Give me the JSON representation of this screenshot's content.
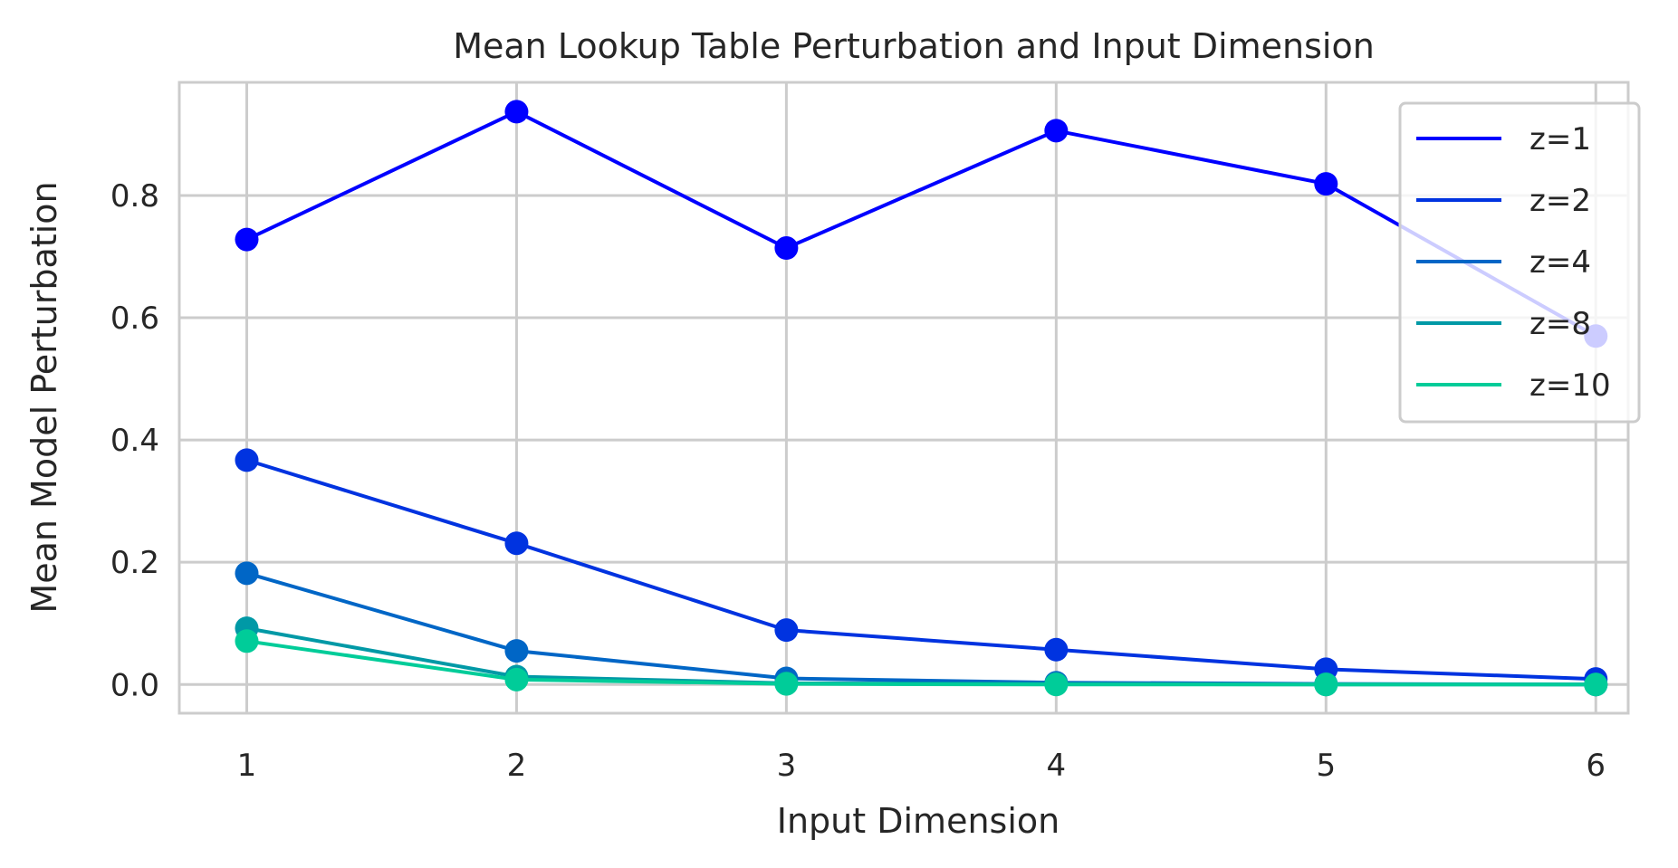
{
  "chart_data": {
    "type": "line",
    "title": "Mean Lookup Table Perturbation and Input Dimension",
    "xlabel": "Input Dimension",
    "ylabel": "Mean Model Perturbation",
    "x": [
      1,
      2,
      3,
      4,
      5,
      6
    ],
    "x_tick_labels": [
      "1",
      "2",
      "3",
      "4",
      "5",
      "6"
    ],
    "y_ticks": [
      0.0,
      0.2,
      0.4,
      0.6,
      0.8
    ],
    "y_tick_labels": [
      "0.0",
      "0.2",
      "0.4",
      "0.6",
      "0.8"
    ],
    "xlim": [
      0.75,
      6.12
    ],
    "ylim": [
      -0.047,
      0.985
    ],
    "grid": true,
    "legend_position": "top-right",
    "series": [
      {
        "name": "z=1",
        "color": "#0000ff",
        "values": [
          0.728,
          0.937,
          0.714,
          0.906,
          0.819,
          0.57
        ]
      },
      {
        "name": "z=2",
        "color": "#0033e0",
        "values": [
          0.367,
          0.231,
          0.089,
          0.057,
          0.025,
          0.009
        ]
      },
      {
        "name": "z=4",
        "color": "#0066c6",
        "values": [
          0.182,
          0.055,
          0.01,
          0.003,
          0.001,
          0.0
        ]
      },
      {
        "name": "z=8",
        "color": "#0099a6",
        "values": [
          0.092,
          0.013,
          0.002,
          0.001,
          0.0,
          0.0
        ]
      },
      {
        "name": "z=10",
        "color": "#00cc99",
        "values": [
          0.071,
          0.008,
          0.001,
          0.0,
          0.0,
          0.0
        ]
      }
    ]
  }
}
